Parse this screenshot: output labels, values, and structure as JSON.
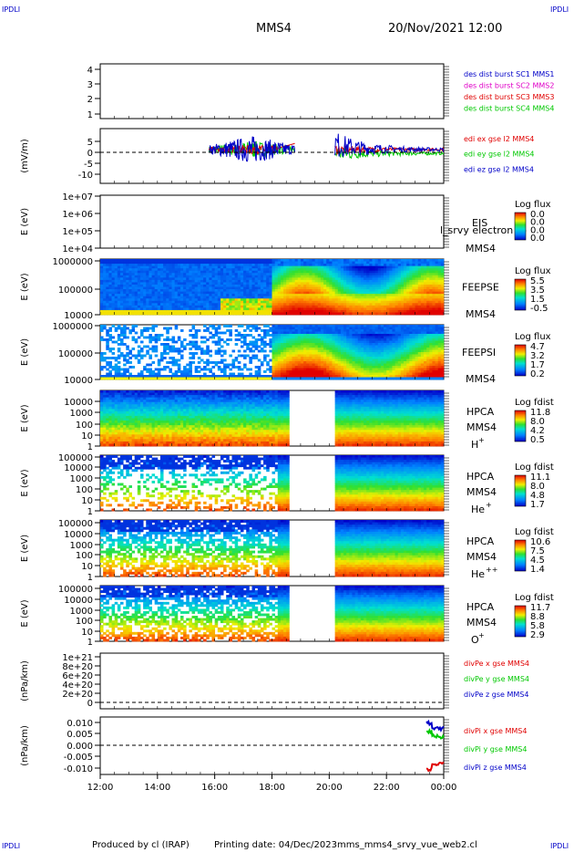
{
  "header": {
    "corner_tl": "IPDLI",
    "corner_tr": "IPDLI",
    "corner_bl": "IPDLI",
    "corner_br": "IPDLI",
    "title": "MMS4",
    "date": "20/Nov/2021 12:00"
  },
  "footer": {
    "produced_by": "Produced by cl (IRAP)",
    "printing_date": "Printing date: 04/Dec/2023",
    "filename": "mms_mms4_srvy_vue_web2.cl"
  },
  "colors": {
    "mms1": "#0000c8",
    "mms2": "#e000c8",
    "mms3": "#e00000",
    "mms4": "#00c800",
    "x": "#e00000",
    "y": "#00c800",
    "z": "#0000c8"
  },
  "chart_data": [
    {
      "type": "line",
      "id": "orbit",
      "yticks": [
        "1",
        "2",
        "3",
        "4"
      ],
      "ylim": [
        0.6,
        4.5
      ],
      "legend": [
        {
          "label": "des dist burst SC1 MMS1",
          "color": "#0000c8"
        },
        {
          "label": "des dist burst SC2 MMS2",
          "color": "#e000c8"
        },
        {
          "label": "des dist burst SC3 MMS3",
          "color": "#e00000"
        },
        {
          "label": "des dist burst SC4 MMS4",
          "color": "#00c800"
        }
      ]
    },
    {
      "type": "line",
      "id": "efield",
      "ylabel": "(mV/m)",
      "yticks": [
        "5",
        "0",
        "-5",
        "-10"
      ],
      "ylim": [
        -13,
        8
      ],
      "data_intervals_hours": [
        [
          15.8,
          18.8
        ],
        [
          20.2,
          24.0
        ]
      ],
      "legend": [
        {
          "label": "edi ex gse l2 MMS4",
          "color": "#e00000"
        },
        {
          "label": "edi ey gse l2 MMS4",
          "color": "#00c800"
        },
        {
          "label": "edi ez gse l2 MMS4",
          "color": "#0000c8"
        }
      ]
    },
    {
      "type": "heatmap",
      "id": "eis",
      "ylabel": "E (eV)",
      "yticks": [
        "1e+07",
        "1e+06",
        "1e+05",
        "1e+04"
      ],
      "labels": [
        "EIS",
        "MMS4"
      ],
      "overlay_text": "l_srvy electron to",
      "colorbar_title": "Log flux",
      "colorbar_ticks": [
        "0.0",
        "0.0",
        "0.0",
        "0.0"
      ]
    },
    {
      "type": "heatmap",
      "id": "feepse",
      "ylabel": "E (eV)",
      "yticks": [
        "1000000",
        "100000",
        "10000"
      ],
      "labels": [
        "FEEPSE",
        "MMS4"
      ],
      "colorbar_title": "Log flux",
      "colorbar_ticks": [
        "5.5",
        "3.5",
        "1.5",
        "-0.5"
      ]
    },
    {
      "type": "heatmap",
      "id": "feepsi",
      "ylabel": "E (eV)",
      "yticks": [
        "1000000",
        "100000",
        "10000"
      ],
      "labels": [
        "FEEPSI",
        "MMS4"
      ],
      "colorbar_title": "Log flux",
      "colorbar_ticks": [
        "4.7",
        "3.2",
        "1.7",
        "0.2"
      ]
    },
    {
      "type": "heatmap",
      "id": "hpca_h",
      "ylabel": "E (eV)",
      "yticks": [
        "10000",
        "1000",
        "100",
        "10",
        "1"
      ],
      "labels": [
        "HPCA",
        "MMS4"
      ],
      "species": "H",
      "species_charge": "+",
      "gap_hours": [
        18.6,
        20.2
      ],
      "colorbar_title": "Log fdist",
      "colorbar_ticks": [
        "11.8",
        "8.0",
        "4.2",
        "0.5"
      ]
    },
    {
      "type": "heatmap",
      "id": "hpca_he",
      "ylabel": "E (eV)",
      "yticks": [
        "100000",
        "10000",
        "1000",
        "100",
        "10",
        "1"
      ],
      "labels": [
        "HPCA",
        "MMS4"
      ],
      "species": "He",
      "species_charge": "+",
      "gap_hours": [
        18.6,
        20.2
      ],
      "colorbar_title": "Log fdist",
      "colorbar_ticks": [
        "11.1",
        "8.0",
        "4.8",
        "1.7"
      ]
    },
    {
      "type": "heatmap",
      "id": "hpca_hepp",
      "ylabel": "E (eV)",
      "yticks": [
        "100000",
        "10000",
        "1000",
        "100",
        "10",
        "1"
      ],
      "labels": [
        "HPCA",
        "MMS4"
      ],
      "species": "He",
      "species_charge": "++",
      "gap_hours": [
        18.6,
        20.2
      ],
      "colorbar_title": "Log fdist",
      "colorbar_ticks": [
        "10.6",
        "7.5",
        "4.5",
        "1.4"
      ]
    },
    {
      "type": "heatmap",
      "id": "hpca_o",
      "ylabel": "E (eV)",
      "yticks": [
        "100000",
        "10000",
        "1000",
        "100",
        "10",
        "1"
      ],
      "labels": [
        "HPCA",
        "MMS4"
      ],
      "species": "O",
      "species_charge": "+",
      "gap_hours": [
        18.6,
        20.2
      ],
      "colorbar_title": "Log fdist",
      "colorbar_ticks": [
        "11.7",
        "8.8",
        "5.8",
        "2.9"
      ]
    },
    {
      "type": "line",
      "id": "divpe",
      "ylabel": "(nPa/km)",
      "yticks": [
        "1e+21",
        "8e+20",
        "6e+20",
        "4e+20",
        "2e+20",
        "0"
      ],
      "ylim": [
        -1e+20,
        1.05e+21
      ],
      "legend": [
        {
          "label": "divPe x gse MMS4",
          "color": "#e00000"
        },
        {
          "label": "divPe y gse MMS4",
          "color": "#00c800"
        },
        {
          "label": "divPe z gse MMS4",
          "color": "#0000c8"
        }
      ]
    },
    {
      "type": "line",
      "id": "divpi",
      "ylabel": "(nPa/km)",
      "yticks": [
        "0.010",
        "0.005",
        "0.000",
        "-0.005",
        "-0.010"
      ],
      "ylim": [
        -0.0125,
        0.0115
      ],
      "series": [
        {
          "name": "divPi x gse MMS4",
          "color": "#e00000",
          "x": [
            23.4,
            23.6,
            23.8,
            24.0
          ],
          "y": [
            -0.0105,
            -0.0085,
            -0.008,
            -0.0078
          ]
        },
        {
          "name": "divPi y gse MMS4",
          "color": "#00c800",
          "x": [
            23.4,
            23.6,
            23.8,
            24.0
          ],
          "y": [
            0.0055,
            0.0035,
            0.003,
            0.0028
          ]
        },
        {
          "name": "divPi z gse MMS4",
          "color": "#0000c8",
          "x": [
            23.4,
            23.6,
            23.8,
            24.0
          ],
          "y": [
            0.009,
            0.007,
            0.0065,
            0.0062
          ]
        }
      ]
    }
  ],
  "xaxis": {
    "xlim": [
      12,
      24
    ],
    "ticks": [
      {
        "v": 12,
        "label": "12:00"
      },
      {
        "v": 14,
        "label": "14:00"
      },
      {
        "v": 16,
        "label": "16:00"
      },
      {
        "v": 18,
        "label": "18:00"
      },
      {
        "v": 20,
        "label": "20:00"
      },
      {
        "v": 22,
        "label": "22:00"
      },
      {
        "v": 24,
        "label": "00:00"
      }
    ]
  }
}
